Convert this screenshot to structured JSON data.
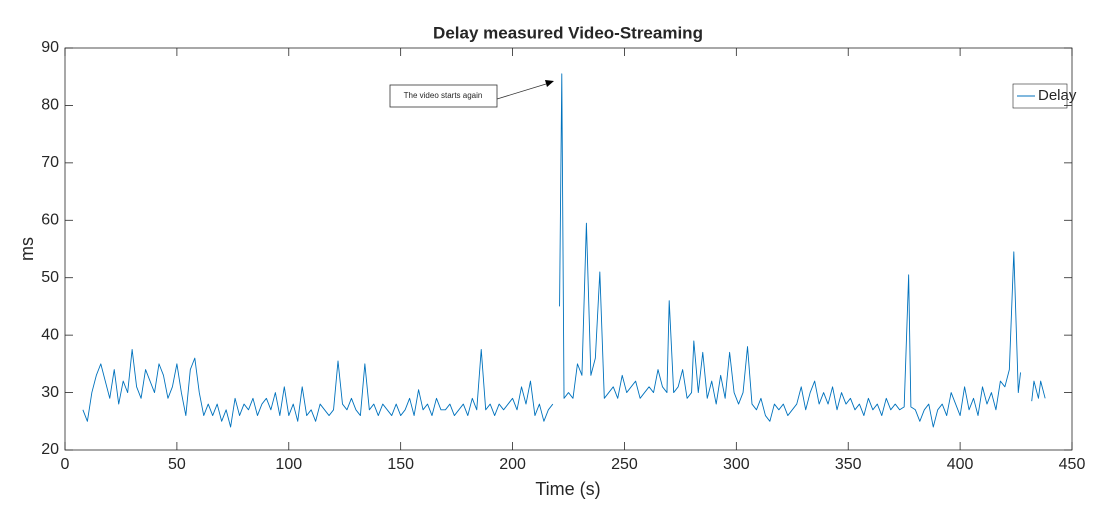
{
  "chart_data": {
    "type": "line",
    "title": "Delay measured Video-Streaming",
    "x_label": "Time (s)",
    "y_label": "ms",
    "annotation": "The video starts again",
    "legend_position": "upper right",
    "grid": false,
    "xlim": [
      0,
      450
    ],
    "xticks": [
      0,
      50,
      100,
      150,
      200,
      250,
      300,
      350,
      400,
      450
    ],
    "ylim": [
      20,
      90
    ],
    "yticks": [
      20,
      30,
      40,
      50,
      60,
      70,
      80,
      90
    ],
    "x": [
      8,
      10,
      12,
      14,
      16,
      18,
      20,
      22,
      24,
      26,
      28,
      30,
      32,
      34,
      36,
      38,
      40,
      42,
      44,
      46,
      48,
      50,
      52,
      54,
      56,
      58,
      60,
      62,
      64,
      66,
      68,
      70,
      72,
      74,
      76,
      78,
      80,
      82,
      84,
      86,
      88,
      90,
      92,
      94,
      96,
      98,
      100,
      102,
      104,
      106,
      108,
      110,
      112,
      114,
      116,
      118,
      120,
      122,
      124,
      126,
      128,
      130,
      132,
      134,
      136,
      138,
      140,
      142,
      144,
      146,
      148,
      150,
      152,
      154,
      156,
      158,
      160,
      162,
      164,
      166,
      168,
      170,
      172,
      174,
      176,
      178,
      180,
      182,
      184,
      186,
      188,
      190,
      192,
      194,
      196,
      198,
      200,
      202,
      204,
      206,
      208,
      210,
      212,
      214,
      216,
      218,
      220,
      221,
      222,
      223,
      225,
      227,
      229,
      231,
      233,
      235,
      237,
      239,
      241,
      243,
      245,
      247,
      249,
      251,
      253,
      255,
      257,
      259,
      261,
      263,
      265,
      267,
      269,
      270,
      272,
      274,
      276,
      278,
      280,
      281,
      283,
      285,
      287,
      289,
      291,
      293,
      295,
      297,
      299,
      301,
      303,
      305,
      307,
      309,
      311,
      313,
      315,
      317,
      319,
      321,
      323,
      325,
      327,
      329,
      331,
      333,
      335,
      337,
      339,
      341,
      343,
      345,
      347,
      349,
      351,
      353,
      355,
      357,
      359,
      361,
      363,
      365,
      367,
      369,
      371,
      373,
      375,
      377,
      378,
      380,
      382,
      384,
      386,
      388,
      390,
      392,
      394,
      396,
      398,
      400,
      402,
      404,
      406,
      408,
      410,
      412,
      414,
      416,
      418,
      420,
      422,
      424,
      426,
      427,
      429,
      432,
      433,
      435,
      436,
      438
    ],
    "series": [
      {
        "name": "Delay",
        "color": "#0072bd",
        "values": [
          27,
          25,
          30,
          33,
          35,
          32,
          29,
          34,
          28,
          32,
          30,
          37.5,
          31,
          29,
          34,
          32,
          30,
          35,
          33,
          29,
          31,
          35,
          30,
          26,
          34,
          36,
          30,
          26,
          28,
          26,
          28,
          25,
          27,
          24,
          29,
          26,
          28,
          27,
          29,
          26,
          28,
          29,
          27,
          30,
          26,
          31,
          26,
          28,
          25,
          31,
          26,
          27,
          25,
          28,
          27,
          26,
          27,
          35.5,
          28,
          27,
          29,
          27,
          26,
          35,
          27,
          28,
          26,
          28,
          27,
          26,
          28,
          26,
          27,
          29,
          26,
          30.5,
          27,
          28,
          26,
          29,
          27,
          27,
          28,
          26,
          27,
          28,
          26,
          29,
          27,
          37.5,
          27,
          28,
          26,
          28,
          27,
          28,
          29,
          27,
          31,
          28,
          32,
          26,
          28,
          25,
          27,
          28,
          null,
          45,
          85.5,
          29,
          30,
          29,
          35,
          33,
          59.5,
          33,
          36,
          51,
          29,
          30,
          31,
          29,
          33,
          30,
          31,
          32,
          29,
          30,
          31,
          30,
          34,
          31,
          30,
          46,
          30,
          31,
          34,
          29,
          30,
          39,
          30,
          37,
          29,
          32,
          28,
          33,
          29,
          37,
          30,
          28,
          30,
          38,
          28,
          27,
          29,
          26,
          25,
          28,
          27,
          28,
          26,
          27,
          28,
          31,
          27,
          30,
          32,
          28,
          30,
          28,
          31,
          27,
          30,
          28,
          29,
          27,
          28,
          26,
          29,
          27,
          28,
          26,
          29,
          27,
          28,
          27,
          27.5,
          50.5,
          27.5,
          27,
          25,
          27,
          28,
          24,
          27,
          28,
          26,
          30,
          28,
          26,
          31,
          27,
          29,
          26,
          31,
          28,
          30,
          27,
          32,
          31,
          34,
          54.5,
          30,
          33.5,
          null,
          28.5,
          32,
          29,
          32,
          29
        ]
      }
    ]
  }
}
